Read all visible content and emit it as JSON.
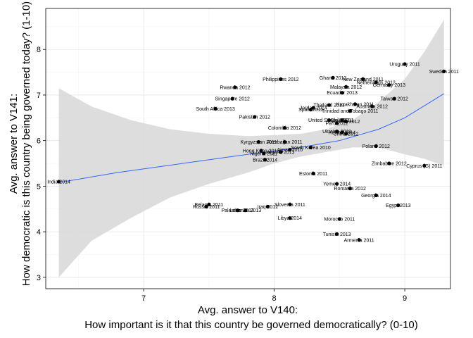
{
  "chart_data": {
    "type": "scatter",
    "title": "",
    "xlabel_lines": [
      "Avg. answer to V140:",
      "How important is it that this country be governed democratically? (0-10)"
    ],
    "ylabel_lines": [
      "Avg. answer to V141:",
      "How democratic is this country being governed today? (1-10)"
    ],
    "xlim": [
      6.25,
      9.35
    ],
    "ylim": [
      2.75,
      8.9
    ],
    "xticks": [
      7,
      8,
      9
    ],
    "yticks": [
      3,
      4,
      5,
      6,
      7,
      8
    ],
    "grid": true,
    "colors": {
      "panel_border": "#000000",
      "grid_major": "#e6e6e6",
      "grid_minor": "#f5f5f5",
      "band_fill": "#d9d9d9",
      "trend_line": "#3366ff",
      "point": "#000000"
    },
    "trend_curve": [
      {
        "x": 6.35,
        "y": 5.08
      },
      {
        "x": 6.8,
        "y": 5.3
      },
      {
        "x": 7.3,
        "y": 5.5
      },
      {
        "x": 7.8,
        "y": 5.7
      },
      {
        "x": 8.2,
        "y": 5.85
      },
      {
        "x": 8.5,
        "y": 6.0
      },
      {
        "x": 8.8,
        "y": 6.25
      },
      {
        "x": 9.0,
        "y": 6.5
      },
      {
        "x": 9.3,
        "y": 7.03
      }
    ],
    "band_upper": [
      {
        "x": 6.35,
        "y": 7.15
      },
      {
        "x": 6.6,
        "y": 6.75
      },
      {
        "x": 6.9,
        "y": 6.45
      },
      {
        "x": 7.2,
        "y": 6.25
      },
      {
        "x": 7.5,
        "y": 6.15
      },
      {
        "x": 7.8,
        "y": 6.1
      },
      {
        "x": 8.0,
        "y": 6.12
      },
      {
        "x": 8.2,
        "y": 6.15
      },
      {
        "x": 8.4,
        "y": 6.25
      },
      {
        "x": 8.6,
        "y": 6.45
      },
      {
        "x": 8.8,
        "y": 6.85
      },
      {
        "x": 9.0,
        "y": 7.35
      },
      {
        "x": 9.15,
        "y": 7.95
      },
      {
        "x": 9.3,
        "y": 8.65
      }
    ],
    "band_lower": [
      {
        "x": 6.35,
        "y": 3.0
      },
      {
        "x": 6.6,
        "y": 3.8
      },
      {
        "x": 6.9,
        "y": 4.3
      },
      {
        "x": 7.2,
        "y": 4.75
      },
      {
        "x": 7.5,
        "y": 5.05
      },
      {
        "x": 7.8,
        "y": 5.3
      },
      {
        "x": 8.0,
        "y": 5.5
      },
      {
        "x": 8.2,
        "y": 5.65
      },
      {
        "x": 8.4,
        "y": 5.75
      },
      {
        "x": 8.6,
        "y": 5.85
      },
      {
        "x": 8.8,
        "y": 5.85
      },
      {
        "x": 9.0,
        "y": 5.7
      },
      {
        "x": 9.15,
        "y": 5.6
      },
      {
        "x": 9.3,
        "y": 5.45
      }
    ],
    "points": [
      {
        "label": "India 2014",
        "x": 6.35,
        "y": 5.1
      },
      {
        "label": "Russia 2011",
        "x": 7.48,
        "y": 4.55
      },
      {
        "label": "Belarus 2011",
        "x": 7.5,
        "y": 4.6
      },
      {
        "label": "Palestine 2013",
        "x": 7.72,
        "y": 4.47
      },
      {
        "label": "Lebanon 2013",
        "x": 7.78,
        "y": 4.47
      },
      {
        "label": "Iraq 2012",
        "x": 7.95,
        "y": 4.55
      },
      {
        "label": "Slovenia 2011",
        "x": 8.12,
        "y": 4.6
      },
      {
        "label": "Libya 2014",
        "x": 8.12,
        "y": 4.3
      },
      {
        "label": "Rwanda 2012",
        "x": 7.7,
        "y": 7.17
      },
      {
        "label": "Philippines 2012",
        "x": 8.05,
        "y": 7.35
      },
      {
        "label": "Singapore 2012",
        "x": 7.68,
        "y": 6.92
      },
      {
        "label": "South Africa 2013",
        "x": 7.55,
        "y": 6.7
      },
      {
        "label": "Pakistan 2012",
        "x": 7.85,
        "y": 6.52
      },
      {
        "label": "Colombia 2012",
        "x": 8.08,
        "y": 6.28
      },
      {
        "label": "Kyrgyzstan 2011",
        "x": 7.88,
        "y": 5.97
      },
      {
        "label": "Azerbaijan 2011",
        "x": 8.08,
        "y": 5.97
      },
      {
        "label": "Hong Kong 2013",
        "x": 7.9,
        "y": 5.78
      },
      {
        "label": "Nigeria 2011",
        "x": 7.92,
        "y": 5.72
      },
      {
        "label": "Algeria 2013",
        "x": 8.05,
        "y": 5.75
      },
      {
        "label": "Japan 2010",
        "x": 8.12,
        "y": 5.8
      },
      {
        "label": "South Korea 2010",
        "x": 8.28,
        "y": 5.85
      },
      {
        "label": "Brazil 2014",
        "x": 7.93,
        "y": 5.58
      },
      {
        "label": "Estonia 2011",
        "x": 8.3,
        "y": 5.28
      },
      {
        "label": "Yemen 2014",
        "x": 8.48,
        "y": 5.05
      },
      {
        "label": "Romania 2012",
        "x": 8.58,
        "y": 4.95
      },
      {
        "label": "Georgia 2014",
        "x": 8.78,
        "y": 4.8
      },
      {
        "label": "Egypt 2013",
        "x": 8.95,
        "y": 4.58
      },
      {
        "label": "Morocco 2011",
        "x": 8.5,
        "y": 4.28
      },
      {
        "label": "Tunisia 2013",
        "x": 8.48,
        "y": 3.95
      },
      {
        "label": "Armenia 2011",
        "x": 8.65,
        "y": 3.82
      },
      {
        "label": "Uruguay 2011",
        "x": 9.0,
        "y": 7.68
      },
      {
        "label": "Sweden 2011",
        "x": 9.3,
        "y": 7.52
      },
      {
        "label": "Ghana 2012",
        "x": 8.45,
        "y": 7.38
      },
      {
        "label": "New Zealand 2011",
        "x": 8.68,
        "y": 7.35
      },
      {
        "label": "Netherlands 2012",
        "x": 8.78,
        "y": 7.28
      },
      {
        "label": "Germany 2013",
        "x": 8.88,
        "y": 7.22
      },
      {
        "label": "Malaysia 2012",
        "x": 8.55,
        "y": 7.18
      },
      {
        "label": "Ecuador 2013",
        "x": 8.52,
        "y": 7.05
      },
      {
        "label": "Taiwan 2012",
        "x": 8.92,
        "y": 6.92
      },
      {
        "label": "Thailand 2013",
        "x": 8.42,
        "y": 6.78
      },
      {
        "label": "Kazakhstan 2011",
        "x": 8.62,
        "y": 6.8
      },
      {
        "label": "Australia 2012",
        "x": 8.75,
        "y": 6.75
      },
      {
        "label": "Jordan 2014",
        "x": 8.3,
        "y": 6.72
      },
      {
        "label": "Spain 2011",
        "x": 8.28,
        "y": 6.68
      },
      {
        "label": "Trinidad and Tobago 2011",
        "x": 8.58,
        "y": 6.65
      },
      {
        "label": "United States 2011",
        "x": 8.42,
        "y": 6.45
      },
      {
        "label": "Chile 2011",
        "x": 8.52,
        "y": 6.45
      },
      {
        "label": "Mexico 2012",
        "x": 8.55,
        "y": 6.42
      },
      {
        "label": "Peru 2012",
        "x": 8.48,
        "y": 6.38
      },
      {
        "label": "Ukraine 2011",
        "x": 8.48,
        "y": 6.2
      },
      {
        "label": "Kuwait 2014",
        "x": 8.52,
        "y": 6.18
      },
      {
        "label": "China 2012",
        "x": 8.55,
        "y": 6.15
      },
      {
        "label": "Poland 2012",
        "x": 8.78,
        "y": 5.88
      },
      {
        "label": "Zimbabwe 2012",
        "x": 8.88,
        "y": 5.5
      },
      {
        "label": "Cyprus (G) 2011",
        "x": 9.15,
        "y": 5.45
      }
    ]
  }
}
